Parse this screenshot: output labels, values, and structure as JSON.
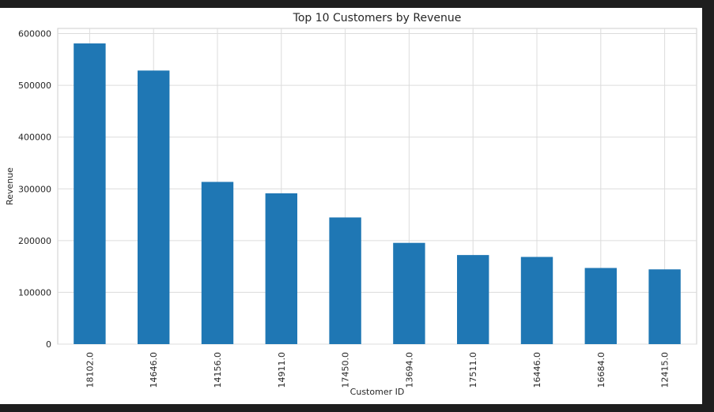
{
  "chart_data": {
    "type": "bar",
    "title": "Top 10 Customers by Revenue",
    "xlabel": "Customer ID",
    "ylabel": "Revenue",
    "categories": [
      "18102.0",
      "14646.0",
      "14156.0",
      "14911.0",
      "17450.0",
      "13694.0",
      "17511.0",
      "16446.0",
      "16684.0",
      "12415.0"
    ],
    "values": [
      580987,
      528603,
      313437,
      291420,
      244784,
      195640,
      172132,
      168472,
      147142,
      144458
    ],
    "ylim": [
      0,
      610000
    ],
    "yticks": [
      0,
      100000,
      200000,
      300000,
      400000,
      500000,
      600000
    ],
    "ytick_labels": [
      "0",
      "100000",
      "200000",
      "300000",
      "400000",
      "500000",
      "600000"
    ],
    "grid": true,
    "bar_color": "#1f77b4"
  }
}
